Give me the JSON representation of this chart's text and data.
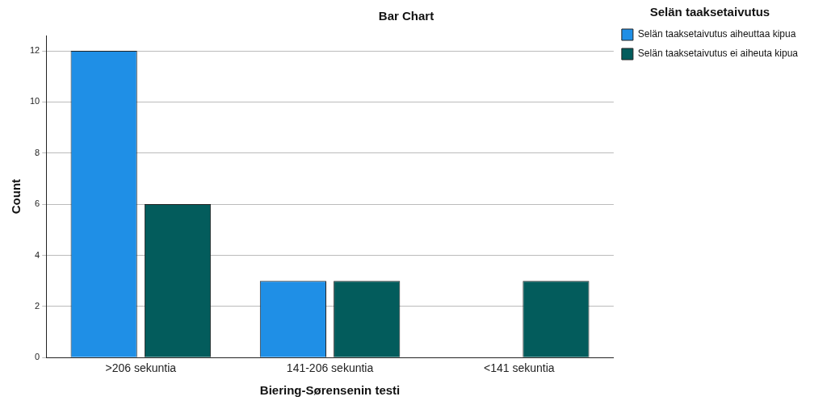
{
  "chart_data": {
    "type": "bar",
    "title": "Bar Chart",
    "xlabel": "Biering-Sørensenin testi",
    "ylabel": "Count",
    "legend_title": "Selän taaksetaivutus",
    "categories": [
      ">206 sekuntia",
      "141-206 sekuntia",
      "<141 sekuntia"
    ],
    "series": [
      {
        "name": "Selän taaksetaivutus aiheuttaa kipua",
        "color": "#1f8fe6",
        "values": [
          12,
          3,
          0
        ]
      },
      {
        "name": "Selän taaksetaivutus ei aiheuta kipua",
        "color": "#035c5c",
        "values": [
          6,
          3,
          3
        ]
      }
    ],
    "ylim": [
      0,
      12.6
    ],
    "yticks": [
      0,
      2,
      4,
      6,
      8,
      10,
      12
    ],
    "grid": "y",
    "legend": "top right"
  }
}
